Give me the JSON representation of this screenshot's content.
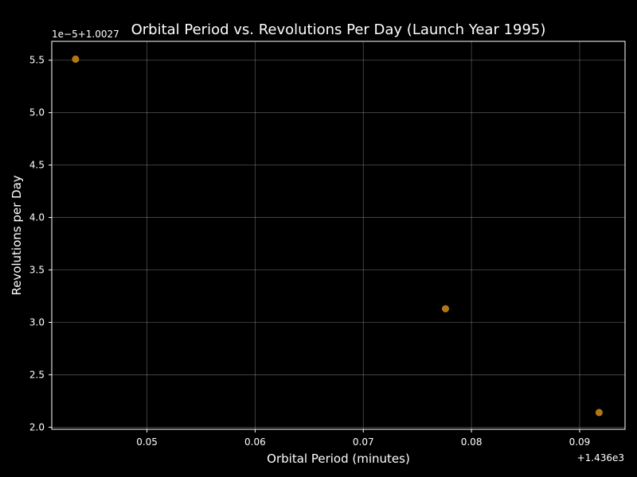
{
  "chart_data": {
    "type": "scatter",
    "title": "Orbital Period vs. Revolutions Per Day (Launch Year 1995)",
    "xlabel": "Orbital Period (minutes)",
    "ylabel": "Revolutions per Day",
    "x_offset_label": "+1.436e3",
    "y_offset_label": "1e−5+1.0027",
    "xlim": [
      0.0412,
      0.0942
    ],
    "ylim": [
      1.98,
      5.68
    ],
    "x_ticks": [
      {
        "value": 0.05,
        "label": "0.05"
      },
      {
        "value": 0.06,
        "label": "0.06"
      },
      {
        "value": 0.07,
        "label": "0.07"
      },
      {
        "value": 0.08,
        "label": "0.08"
      },
      {
        "value": 0.09,
        "label": "0.09"
      }
    ],
    "y_ticks": [
      {
        "value": 2.0,
        "label": "2.0"
      },
      {
        "value": 2.5,
        "label": "2.5"
      },
      {
        "value": 3.0,
        "label": "3.0"
      },
      {
        "value": 3.5,
        "label": "3.5"
      },
      {
        "value": 4.0,
        "label": "4.0"
      },
      {
        "value": 4.5,
        "label": "4.5"
      },
      {
        "value": 5.0,
        "label": "5.0"
      },
      {
        "value": 5.5,
        "label": "5.5"
      }
    ],
    "grid": true,
    "points": [
      {
        "x": 0.0434,
        "y": 5.51
      },
      {
        "x": 0.0776,
        "y": 3.13
      },
      {
        "x": 0.0918,
        "y": 2.14
      }
    ],
    "marker_color": "#d4871a",
    "marker_edge_color": "#b8860b",
    "background": "#000000",
    "foreground": "#ffffff"
  }
}
